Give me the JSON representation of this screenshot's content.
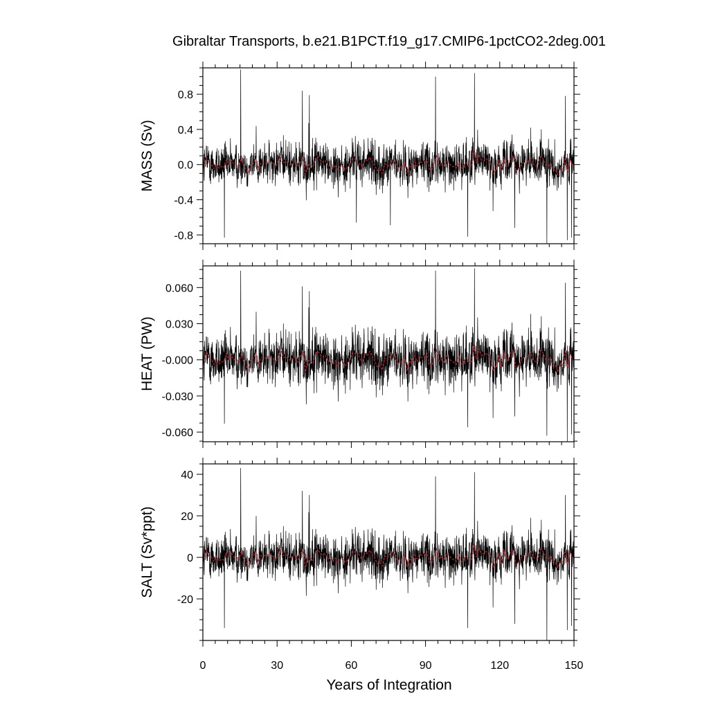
{
  "chart_data": {
    "type": "line",
    "title": "Gibraltar Transports, b.e21.B1PCT.f19_g17.CMIP6-1pctCO2-2deg.001",
    "xlabel": "Years of Integration",
    "xlim": [
      0,
      150
    ],
    "xticks": [
      "0",
      "30",
      "60",
      "90",
      "120",
      "150"
    ],
    "xtick_values": [
      0,
      30,
      60,
      90,
      120,
      150
    ],
    "grid": false,
    "legend": "none",
    "series_colors": {
      "monthly": "#000000",
      "annual_mean": "#e8202a"
    },
    "panels": [
      {
        "ylabel": "MASS (Sv)",
        "ylim": [
          -0.9,
          1.1
        ],
        "yticks": [
          "0.8",
          "0.4",
          "0.0",
          "-0.4",
          "-0.8"
        ],
        "ytick_values": [
          0.8,
          0.4,
          0.0,
          -0.4,
          -0.8
        ],
        "noise_amplitude": 0.12,
        "annual_amplitude": 0.05,
        "spikes": [
          {
            "x": 15.3,
            "y": 1.08
          },
          {
            "x": 8.7,
            "y": -0.83
          },
          {
            "x": 40.2,
            "y": 0.84
          },
          {
            "x": 43.0,
            "y": 0.79
          },
          {
            "x": 94.0,
            "y": 1.0
          },
          {
            "x": 109.8,
            "y": 1.04
          },
          {
            "x": 107.0,
            "y": -0.82
          },
          {
            "x": 139.0,
            "y": -0.9
          },
          {
            "x": 146.5,
            "y": 0.78
          },
          {
            "x": 147.3,
            "y": -0.86
          },
          {
            "x": 149.0,
            "y": -0.83
          },
          {
            "x": 126.0,
            "y": -0.72
          },
          {
            "x": 75.8,
            "y": -0.69
          },
          {
            "x": 62.0,
            "y": -0.66
          }
        ]
      },
      {
        "ylabel": "HEAT (PW)",
        "ylim": [
          -0.068,
          0.078
        ],
        "yticks": [
          "0.060",
          "0.030",
          "-0.000",
          "-0.030",
          "-0.060"
        ],
        "ytick_values": [
          0.06,
          0.03,
          0.0,
          -0.03,
          -0.06
        ],
        "noise_amplitude": 0.011,
        "annual_amplitude": 0.004,
        "spikes": [
          {
            "x": 15.3,
            "y": 0.074
          },
          {
            "x": 8.7,
            "y": -0.053
          },
          {
            "x": 40.2,
            "y": 0.061
          },
          {
            "x": 43.0,
            "y": 0.057
          },
          {
            "x": 94.0,
            "y": 0.074
          },
          {
            "x": 109.8,
            "y": 0.076
          },
          {
            "x": 107.0,
            "y": -0.056
          },
          {
            "x": 139.0,
            "y": -0.063
          },
          {
            "x": 146.5,
            "y": 0.064
          },
          {
            "x": 147.3,
            "y": -0.068
          },
          {
            "x": 149.0,
            "y": -0.062
          },
          {
            "x": 126.0,
            "y": -0.047
          }
        ]
      },
      {
        "ylabel": "SALT (Sv*ppt)",
        "ylim": [
          -40,
          45
        ],
        "yticks": [
          "40",
          "20",
          "0",
          "-20"
        ],
        "ytick_values": [
          40,
          20,
          0,
          -20
        ],
        "noise_amplitude": 5.5,
        "annual_amplitude": 2.0,
        "spikes": [
          {
            "x": 15.3,
            "y": 43
          },
          {
            "x": 8.7,
            "y": -34
          },
          {
            "x": 40.2,
            "y": 32
          },
          {
            "x": 43.0,
            "y": 30
          },
          {
            "x": 94.0,
            "y": 39
          },
          {
            "x": 109.8,
            "y": 41
          },
          {
            "x": 107.0,
            "y": -34
          },
          {
            "x": 139.0,
            "y": -40
          },
          {
            "x": 146.5,
            "y": 30
          },
          {
            "x": 147.3,
            "y": -35
          },
          {
            "x": 149.0,
            "y": -33
          },
          {
            "x": 126.0,
            "y": -32
          }
        ]
      }
    ]
  }
}
